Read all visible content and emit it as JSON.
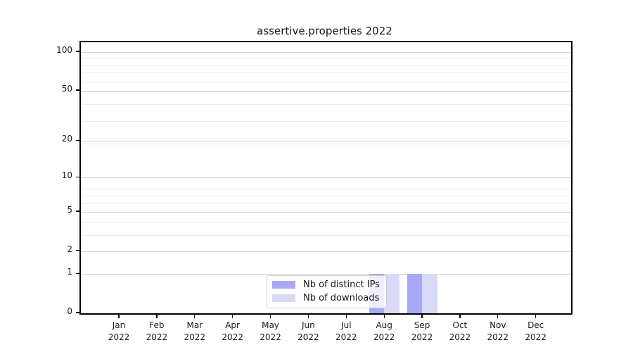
{
  "chart_data": {
    "type": "bar",
    "title": "assertive.properties 2022",
    "categories": [
      "Jan 2022",
      "Feb 2022",
      "Mar 2022",
      "Apr 2022",
      "May 2022",
      "Jun 2022",
      "Jul 2022",
      "Aug 2022",
      "Sep 2022",
      "Oct 2022",
      "Nov 2022",
      "Dec 2022"
    ],
    "series": [
      {
        "name": "Nb of distinct IPs",
        "color": "#a8a8f6",
        "values": [
          0,
          0,
          0,
          0,
          0,
          0,
          0,
          1,
          1,
          0,
          0,
          0
        ]
      },
      {
        "name": "Nb of downloads",
        "color": "#d9d9f8",
        "values": [
          0,
          0,
          0,
          0,
          0,
          0,
          0,
          1,
          1,
          0,
          0,
          0
        ]
      }
    ],
    "xlabel": "",
    "ylabel": "",
    "y_axis": {
      "scale": "log1p",
      "tick_values": [
        0,
        1,
        2,
        5,
        10,
        20,
        50,
        100
      ],
      "minor_gridline_multiples": [
        4,
        5,
        7,
        8,
        9,
        20,
        30,
        40,
        50,
        60,
        70,
        80,
        90
      ],
      "max": 119
    },
    "legend": {
      "position": "lower center",
      "items": [
        "Nb of distinct IPs",
        "Nb of downloads"
      ]
    },
    "grid": true,
    "colors": {
      "grid_major": "#d2d2d2",
      "grid_minor": "#ebebeb",
      "spine": "#000000",
      "text": "#1a1a1a"
    }
  }
}
